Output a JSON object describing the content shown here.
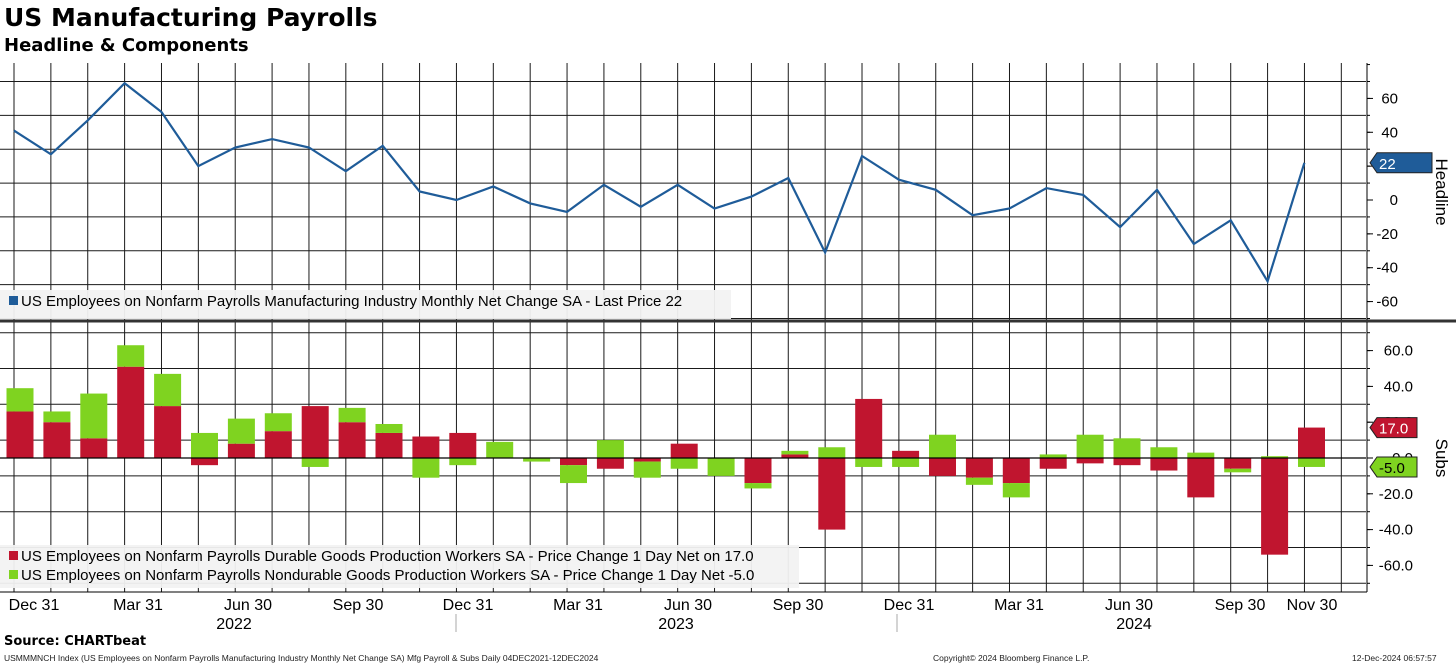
{
  "title": "US Manufacturing Payrolls",
  "subtitle": "Headline & Components",
  "source": "Source: CHARTbeat",
  "footer": {
    "left": "USMMMNCH Index (US Employees on Nonfarm Payrolls Manufacturing Industry Monthly Net Change SA) Mfg Payroll & Subs  Daily 04DEC2021-12DEC2024",
    "center": "Copyright© 2024 Bloomberg Finance L.P.",
    "right": "12-Dec-2024 06:57:57"
  },
  "colors": {
    "headline": "#1f5c99",
    "durable": "#c0152f",
    "nondurable": "#7fd320",
    "grid": "#1a1a1a"
  },
  "chart_data": [
    {
      "type": "line",
      "panel": "top",
      "axis_title": "Headline",
      "ylim": [
        -72,
        82
      ],
      "y_ticks": [
        -60,
        -40,
        -20,
        0,
        20,
        40,
        60
      ],
      "y_tick_labels": [
        "-60",
        "-40",
        "-20",
        "0",
        "20",
        "40",
        "60"
      ],
      "last_value": 22,
      "last_value_label": "22",
      "legend": [
        {
          "name": "US Employees on Nonfarm Payrolls Manufacturing Industry Monthly Net Change SA - Last Price 22",
          "color": "#1f5c99"
        }
      ],
      "series": [
        {
          "name": "US Employees on Nonfarm Payrolls Manufacturing Industry Monthly Net Change SA",
          "values": [
            41,
            27,
            47,
            69,
            52,
            20,
            31,
            36,
            31,
            17,
            32,
            5,
            0,
            8,
            -2,
            -7,
            9,
            -4,
            9,
            -5,
            2,
            13,
            -31,
            26,
            12,
            6,
            -9,
            -5,
            7,
            3,
            -16,
            6,
            -26,
            -12,
            -48,
            22
          ]
        }
      ]
    },
    {
      "type": "bar",
      "panel": "bottom",
      "stacked": true,
      "axis_title": "Subs",
      "ylim": [
        -70,
        72
      ],
      "y_ticks": [
        -60,
        -40,
        -20,
        0,
        20,
        40,
        60
      ],
      "y_tick_labels": [
        "-60.0",
        "-40.0",
        "-20.0",
        "0.0",
        "20.0",
        "40.0",
        "60.0"
      ],
      "last_labels": [
        "17.0",
        "-5.0"
      ],
      "legend": [
        {
          "name": "US Employees on Nonfarm Payrolls Durable Goods Production Workers SA - Price Change 1 Day Net on 17.0",
          "color": "#c0152f"
        },
        {
          "name": "US Employees on Nonfarm Payrolls Nondurable Goods Production Workers SA - Price Change 1 Day Net -5.0",
          "color": "#7fd320"
        }
      ],
      "series": [
        {
          "name": "Durable Goods",
          "values": [
            26,
            20,
            11,
            51,
            29,
            -4,
            8,
            15,
            29,
            20,
            14,
            12,
            14,
            0,
            0,
            -4,
            -6,
            -2,
            8,
            0,
            -14,
            2,
            -40,
            33,
            4,
            -10,
            -11,
            -14,
            -6,
            -3,
            -4,
            -7,
            -22,
            -6,
            -54,
            17
          ]
        },
        {
          "name": "Nondurable Goods",
          "values": [
            13,
            6,
            25,
            12,
            18,
            14,
            14,
            10,
            -5,
            8,
            5,
            -11,
            -4,
            9,
            -2,
            -10,
            10,
            -9,
            -6,
            -10,
            -3,
            2,
            6,
            -5,
            -5,
            13,
            -4,
            -8,
            2,
            13,
            11,
            6,
            3,
            -2,
            1,
            -5
          ]
        }
      ]
    }
  ],
  "x_axis": {
    "month_labels": [
      "Dec 31",
      "Mar 31",
      "Jun 30",
      "Sep 30",
      "Dec 31",
      "Mar 31",
      "Jun 30",
      "Sep 30",
      "Dec 31",
      "Mar 31",
      "Jun 30",
      "Sep 30",
      "Nov 30"
    ],
    "year_labels": [
      "2022",
      "2023",
      "2024"
    ]
  }
}
